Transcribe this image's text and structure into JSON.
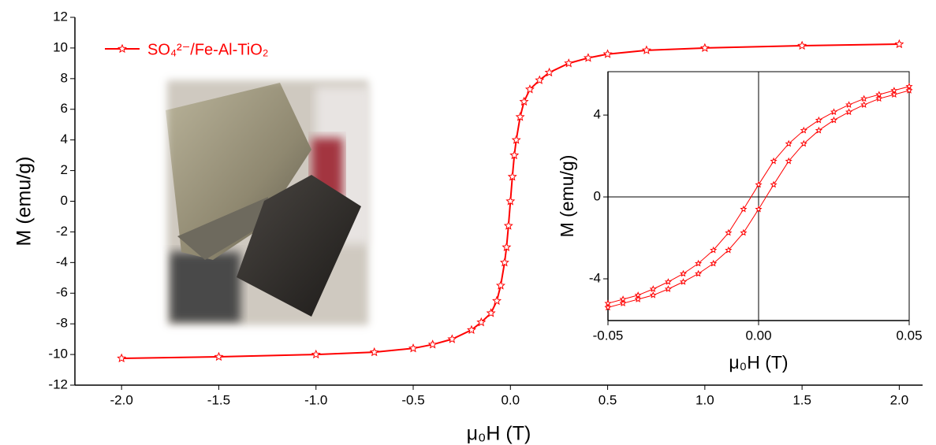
{
  "chart_data": [
    {
      "type": "line",
      "x_label": "μ₀H (T)",
      "y_label": "M (emu/g)",
      "xlim": [
        -2.24,
        2.12
      ],
      "ylim": [
        -12,
        12
      ],
      "xticks": [
        {
          "value": -2,
          "label": "-2.0"
        },
        {
          "value": -1.5,
          "label": "-1.5"
        },
        {
          "value": -1,
          "label": "-1.0"
        },
        {
          "value": -0.5,
          "label": "-0.5"
        },
        {
          "value": 0,
          "label": "0.0"
        },
        {
          "value": 0.5,
          "label": "0.5"
        },
        {
          "value": 1,
          "label": "1.0"
        },
        {
          "value": 1.5,
          "label": "1.5"
        },
        {
          "value": 2,
          "label": "2.0"
        }
      ],
      "yticks": [
        -12,
        -10,
        -8,
        -6,
        -4,
        -2,
        0,
        2,
        4,
        6,
        8,
        10,
        12
      ],
      "legend": "upper left",
      "marker": "star",
      "series": [
        {
          "name": "SO₄²⁻/Fe-Al-TiO₂",
          "color": "#ff0000",
          "x": [
            -2,
            -1.5,
            -1,
            -0.7,
            -0.5,
            -0.4,
            -0.3,
            -0.2,
            -0.15,
            -0.1,
            -0.07,
            -0.05,
            -0.03,
            -0.02,
            -0.01,
            0,
            0.01,
            0.02,
            0.03,
            0.05,
            0.07,
            0.1,
            0.15,
            0.2,
            0.3,
            0.4,
            0.5,
            0.7,
            1,
            1.5,
            2
          ],
          "values": [
            -10.25,
            -10.15,
            -10.0,
            -9.85,
            -9.6,
            -9.35,
            -9.0,
            -8.4,
            -7.9,
            -7.3,
            -6.5,
            -5.5,
            -4.0,
            -3.0,
            -1.6,
            0,
            1.6,
            3.0,
            4.0,
            5.5,
            6.5,
            7.3,
            7.9,
            8.4,
            9.0,
            9.35,
            9.6,
            9.85,
            10.0,
            10.15,
            10.25
          ]
        }
      ]
    },
    {
      "type": "line",
      "x_label": "μ₀H (T)",
      "y_label": "M (emu/g)",
      "xlim": [
        -0.05,
        0.05
      ],
      "ylim": [
        -6.04,
        6.12
      ],
      "xticks": [
        -0.05,
        {
          "value": 0,
          "label": "0.00"
        },
        0.05
      ],
      "yticks": [
        -4,
        0,
        4
      ],
      "zero_lines": true,
      "marker": "star",
      "series": [
        {
          "color": "#ff0000",
          "x": [
            -0.05,
            -0.045,
            -0.04,
            -0.035,
            -0.03,
            -0.025,
            -0.02,
            -0.015,
            -0.01,
            -0.005,
            0,
            0.005,
            0.01,
            0.015,
            0.02,
            0.025,
            0.03,
            0.035,
            0.04,
            0.045,
            0.05
          ],
          "values": [
            -5.2,
            -5.0,
            -4.8,
            -4.5,
            -4.15,
            -3.75,
            -3.25,
            -2.6,
            -1.75,
            -0.6,
            0.6,
            1.75,
            2.6,
            3.25,
            3.75,
            4.15,
            4.5,
            4.8,
            5.0,
            5.2,
            5.4
          ]
        },
        {
          "color": "#ff0000",
          "x": [
            -0.05,
            -0.045,
            -0.04,
            -0.035,
            -0.03,
            -0.025,
            -0.02,
            -0.015,
            -0.01,
            -0.005,
            0,
            0.005,
            0.01,
            0.015,
            0.02,
            0.025,
            0.03,
            0.035,
            0.04,
            0.045,
            0.05
          ],
          "values": [
            -5.4,
            -5.2,
            -5.0,
            -4.8,
            -4.5,
            -4.15,
            -3.75,
            -3.25,
            -2.6,
            -1.75,
            -0.6,
            0.6,
            1.75,
            2.6,
            3.25,
            3.75,
            4.15,
            4.5,
            4.8,
            5.0,
            5.2
          ]
        }
      ]
    }
  ]
}
